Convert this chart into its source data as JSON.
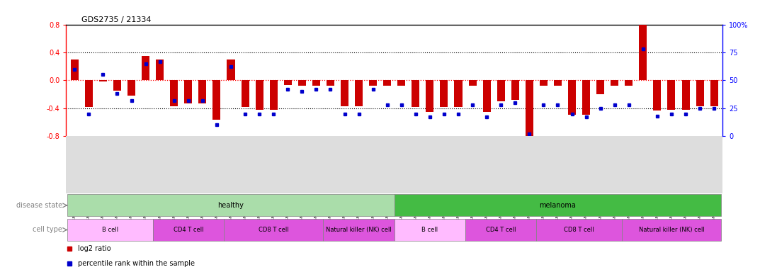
{
  "title": "GDS2735 / 21334",
  "samples": [
    "GSM158372",
    "GSM158512",
    "GSM158513",
    "GSM158514",
    "GSM158515",
    "GSM158516",
    "GSM158532",
    "GSM158533",
    "GSM158534",
    "GSM158535",
    "GSM158536",
    "GSM158543",
    "GSM158544",
    "GSM158545",
    "GSM158546",
    "GSM158547",
    "GSM158548",
    "GSM158612",
    "GSM158613",
    "GSM158615",
    "GSM158617",
    "GSM158619",
    "GSM158623",
    "GSM158524",
    "GSM158526",
    "GSM158529",
    "GSM158530",
    "GSM158531",
    "GSM158537",
    "GSM158538",
    "GSM158539",
    "GSM158540",
    "GSM158541",
    "GSM158542",
    "GSM158597",
    "GSM158598",
    "GSM158600",
    "GSM158601",
    "GSM158603",
    "GSM158605",
    "GSM158627",
    "GSM158629",
    "GSM158631",
    "GSM158632",
    "GSM158633",
    "GSM158634"
  ],
  "log2_ratio": [
    0.3,
    -0.38,
    -0.02,
    -0.15,
    -0.22,
    0.35,
    0.3,
    -0.37,
    -0.33,
    -0.33,
    -0.57,
    0.3,
    -0.38,
    -0.42,
    -0.42,
    -0.07,
    -0.08,
    -0.08,
    -0.08,
    -0.37,
    -0.37,
    -0.08,
    -0.08,
    -0.08,
    -0.38,
    -0.45,
    -0.38,
    -0.38,
    -0.08,
    -0.45,
    -0.3,
    -0.28,
    -0.8,
    -0.08,
    -0.08,
    -0.5,
    -0.5,
    -0.2,
    -0.08,
    -0.08,
    0.82,
    -0.43,
    -0.42,
    -0.42,
    -0.37,
    -0.37
  ],
  "percentile": [
    60,
    20,
    55,
    38,
    32,
    65,
    67,
    32,
    32,
    32,
    10,
    62,
    20,
    20,
    20,
    42,
    40,
    42,
    42,
    20,
    20,
    42,
    28,
    28,
    20,
    17,
    20,
    20,
    28,
    17,
    28,
    30,
    2,
    28,
    28,
    20,
    17,
    25,
    28,
    28,
    78,
    18,
    20,
    20,
    25,
    25
  ],
  "disease_healthy_range": [
    0,
    22
  ],
  "disease_melanoma_range": [
    23,
    45
  ],
  "cell_groups_healthy": [
    {
      "label": "B cell",
      "start": 0,
      "end": 5
    },
    {
      "label": "CD4 T cell",
      "start": 6,
      "end": 10
    },
    {
      "label": "CD8 T cell",
      "start": 11,
      "end": 17
    },
    {
      "label": "Natural killer (NK) cell",
      "start": 18,
      "end": 22
    }
  ],
  "cell_groups_melanoma": [
    {
      "label": "B cell",
      "start": 23,
      "end": 27
    },
    {
      "label": "CD4 T cell",
      "start": 28,
      "end": 32
    },
    {
      "label": "CD8 T cell",
      "start": 33,
      "end": 38
    },
    {
      "label": "Natural killer (NK) cell",
      "start": 39,
      "end": 45
    }
  ],
  "ylim": [
    -0.8,
    0.8
  ],
  "yticks_left": [
    -0.8,
    -0.4,
    0.0,
    0.4,
    0.8
  ],
  "yticks_right_pct": [
    0,
    25,
    50,
    75,
    100
  ],
  "bar_color": "#cc0000",
  "dot_color": "#0000cc",
  "healthy_color": "#aaddaa",
  "melanoma_color": "#44bb44",
  "bcell_color": "#ffbbff",
  "cd4_color": "#dd55dd",
  "cd8_color": "#dd55dd",
  "nk_color": "#dd55dd",
  "legend_bar_label": "log2 ratio",
  "legend_dot_label": "percentile rank within the sample"
}
